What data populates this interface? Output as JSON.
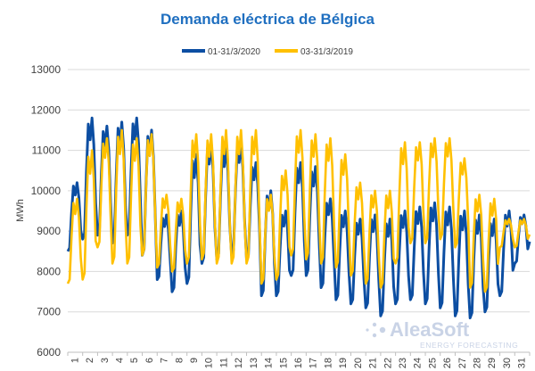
{
  "chart_data": {
    "type": "line",
    "title": "Demanda eléctrica de Bélgica",
    "ylabel": "MWh",
    "xlabel": "",
    "ylim": [
      6000,
      13000
    ],
    "yticks": [
      6000,
      7000,
      8000,
      9000,
      10000,
      11000,
      12000,
      13000
    ],
    "xticks": [
      "1",
      "2",
      "3",
      "4",
      "5",
      "6",
      "7",
      "8",
      "9",
      "10",
      "11",
      "12",
      "13",
      "14",
      "15",
      "16",
      "17",
      "18",
      "19",
      "20",
      "21",
      "22",
      "23",
      "24",
      "25",
      "26",
      "27",
      "28",
      "29",
      "30",
      "31"
    ],
    "grid": true,
    "legend_position": "top",
    "series": [
      {
        "name": "01-31/3/2020",
        "color": "#0c4ea2",
        "daily_min": [
          8500,
          8800,
          8900,
          8700,
          8900,
          8400,
          7800,
          7500,
          7700,
          8200,
          8300,
          8400,
          8300,
          7400,
          7400,
          7900,
          7900,
          7600,
          7300,
          7200,
          7100,
          6900,
          7200,
          7300,
          7200,
          7100,
          6900,
          6850,
          7000,
          7400,
          8200
        ],
        "daily_max": [
          10200,
          11800,
          11600,
          11700,
          11800,
          11500,
          9400,
          9500,
          10900,
          11200,
          11100,
          11200,
          10700,
          10000,
          9500,
          10700,
          10600,
          9800,
          9500,
          9300,
          9400,
          9300,
          9500,
          9600,
          9700,
          9600,
          9500,
          9400,
          9300,
          9500,
          9400
        ]
      },
      {
        "name": "03-31/3/2019",
        "color": "#ffc000",
        "daily_min": [
          7700,
          7800,
          8600,
          8200,
          8200,
          8400,
          8100,
          8000,
          8200,
          8300,
          8200,
          8200,
          8200,
          7700,
          7800,
          8400,
          8300,
          8200,
          8100,
          7900,
          7700,
          7600,
          8200,
          8700,
          8700,
          8800,
          8600,
          7600,
          7500,
          8600,
          8600
        ],
        "daily_max": [
          9800,
          11000,
          11300,
          11500,
          11300,
          11400,
          9900,
          9800,
          11400,
          11400,
          11500,
          11500,
          11500,
          9900,
          10500,
          11500,
          11400,
          11300,
          10900,
          10200,
          10000,
          10000,
          11200,
          11200,
          11300,
          11300,
          10800,
          9900,
          9800,
          9300,
          9300
        ]
      }
    ]
  },
  "watermark": {
    "brand": "AleaSoft",
    "tagline": "ENERGY FORECASTING"
  }
}
